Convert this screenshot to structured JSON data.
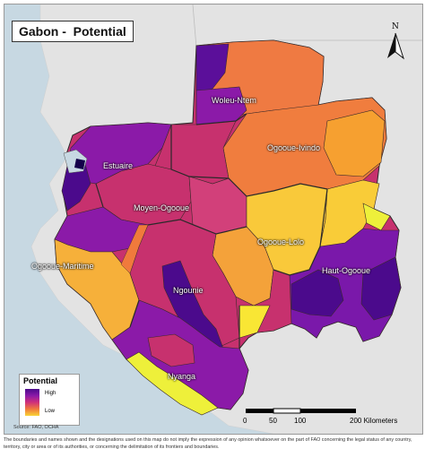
{
  "title": "Gabon -  Potential",
  "north_label": "N",
  "regions": [
    {
      "name": "Woleu-Ntem"
    },
    {
      "name": "Estuaire"
    },
    {
      "name": "Ogooue-Ivindo"
    },
    {
      "name": "Moyen-Ogooue"
    },
    {
      "name": "Ogooue-Lolo"
    },
    {
      "name": "Ogooue-Maritime"
    },
    {
      "name": "Haut-Ogooue"
    },
    {
      "name": "Ngounie"
    },
    {
      "name": "Nyanga"
    }
  ],
  "legend": {
    "title": "Potential",
    "high": "High",
    "low": "Low",
    "colors": [
      "#4b0a8c",
      "#8a1aa8",
      "#d0307a",
      "#f07a3c",
      "#f9d436"
    ]
  },
  "scale": {
    "labels": [
      "0",
      "50",
      "100",
      "200 Kilometers"
    ]
  },
  "source": "Source: FAO, OCHA",
  "disclaimer": "The boundaries and names shown and the designations used on this map do not imply the expression of any opinion whatsoever on the part of FAO concerning the legal status of any country, territory, city or area or of its authorities, or concerning the delimitation of its frontiers and boundaries."
}
